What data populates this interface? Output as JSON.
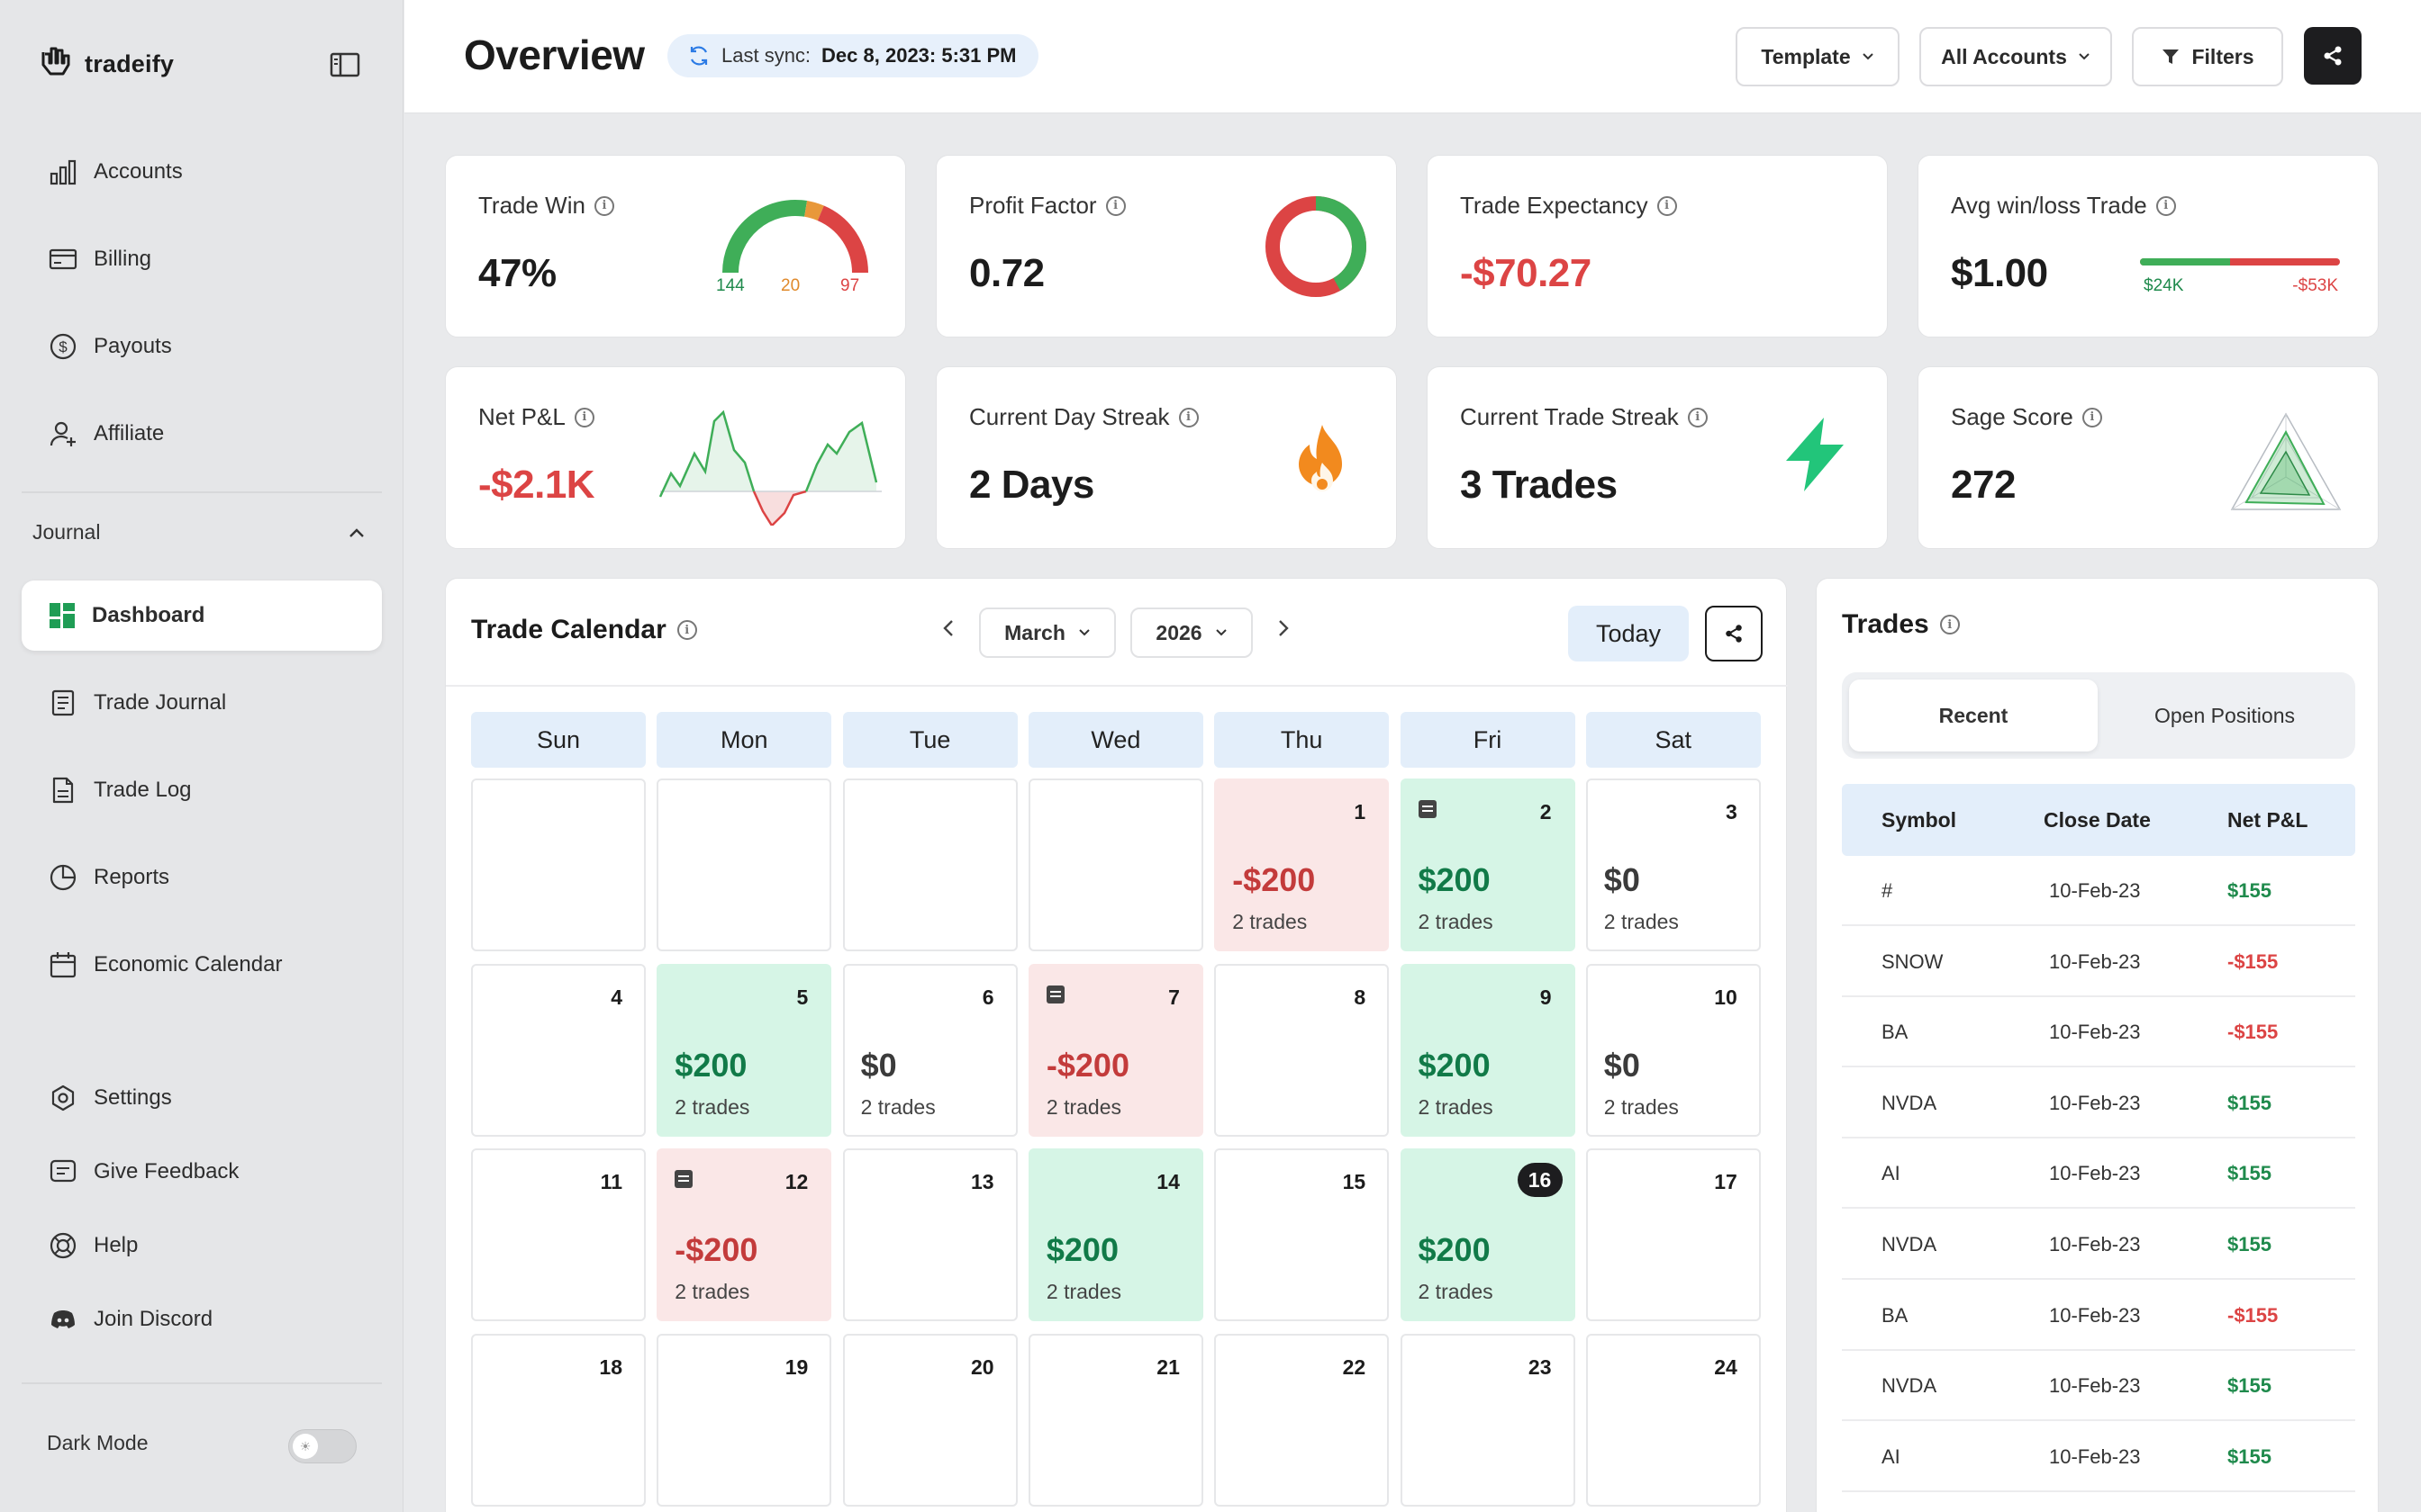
{
  "app": {
    "name": "tradeify"
  },
  "sidebar": {
    "items_top": [
      {
        "label": "Accounts",
        "icon": "bar-chart-icon"
      },
      {
        "label": "Billing",
        "icon": "credit-card-icon"
      },
      {
        "label": "Payouts",
        "icon": "dollar-circle-icon"
      },
      {
        "label": "Affiliate",
        "icon": "user-add-icon"
      }
    ],
    "section_label": "Journal",
    "journal_items": [
      {
        "label": "Dashboard",
        "icon": "dashboard-grid-icon",
        "active": true
      },
      {
        "label": "Trade Journal",
        "icon": "journal-icon"
      },
      {
        "label": "Trade Log",
        "icon": "document-icon"
      },
      {
        "label": "Reports",
        "icon": "pie-chart-icon"
      },
      {
        "label": "Economic Calendar",
        "icon": "calendar-icon"
      }
    ],
    "items_bottom": [
      {
        "label": "Settings",
        "icon": "settings-hex-icon"
      },
      {
        "label": "Give Feedback",
        "icon": "feedback-icon"
      },
      {
        "label": "Help",
        "icon": "lifebuoy-icon"
      },
      {
        "label": "Join Discord",
        "icon": "discord-icon"
      }
    ],
    "dark_mode_label": "Dark Mode",
    "dark_mode_on": false
  },
  "header": {
    "title": "Overview",
    "sync_label": "Last sync:",
    "sync_value": "Dec 8, 2023: 5:31 PM",
    "template_label": "Template",
    "accounts_label": "All Accounts",
    "filters_label": "Filters"
  },
  "kpis": {
    "trade_win": {
      "label": "Trade Win",
      "value": "47%",
      "wins": "144",
      "breakeven": "20",
      "losses": "97"
    },
    "profit_factor": {
      "label": "Profit Factor",
      "value": "0.72",
      "ratio": 0.72
    },
    "trade_expectancy": {
      "label": "Trade Expectancy",
      "value": "-$70.27"
    },
    "avg_win_loss": {
      "label": "Avg win/loss Trade",
      "value": "$1.00",
      "avg_win": "$24K",
      "avg_loss": "-$53K"
    },
    "net_pnl": {
      "label": "Net P&L",
      "value": "-$2.1K"
    },
    "day_streak": {
      "label": "Current Day Streak",
      "value": "2 Days"
    },
    "trade_streak": {
      "label": "Current Trade Streak",
      "value": "3 Trades"
    },
    "sage_score": {
      "label": "Sage Score",
      "value": "272"
    }
  },
  "calendar": {
    "title": "Trade Calendar",
    "month": "March",
    "year": "2026",
    "today_label": "Today",
    "weekdays": [
      "Sun",
      "Mon",
      "Tue",
      "Wed",
      "Thu",
      "Fri",
      "Sat"
    ],
    "weeks": [
      [
        null,
        null,
        null,
        null,
        {
          "day": "1",
          "amount": "-$200",
          "trades": "2 trades",
          "tone": "neg"
        },
        {
          "day": "2",
          "amount": "$200",
          "trades": "2 trades",
          "tone": "pos",
          "note": true
        },
        {
          "day": "3",
          "amount": "$0",
          "trades": "2 trades",
          "tone": "zero"
        }
      ],
      [
        {
          "day": "4"
        },
        {
          "day": "5",
          "amount": "$200",
          "trades": "2 trades",
          "tone": "pos"
        },
        {
          "day": "6",
          "amount": "$0",
          "trades": "2 trades",
          "tone": "zero"
        },
        {
          "day": "7",
          "amount": "-$200",
          "trades": "2 trades",
          "tone": "neg",
          "note": true
        },
        {
          "day": "8"
        },
        {
          "day": "9",
          "amount": "$200",
          "trades": "2 trades",
          "tone": "pos"
        },
        {
          "day": "10",
          "amount": "$0",
          "trades": "2 trades",
          "tone": "zero"
        }
      ],
      [
        {
          "day": "11"
        },
        {
          "day": "12",
          "amount": "-$200",
          "trades": "2 trades",
          "tone": "neg",
          "note": true
        },
        {
          "day": "13"
        },
        {
          "day": "14",
          "amount": "$200",
          "trades": "2 trades",
          "tone": "pos"
        },
        {
          "day": "15"
        },
        {
          "day": "16",
          "amount": "$200",
          "trades": "2 trades",
          "tone": "pos",
          "today": true
        },
        {
          "day": "17"
        }
      ],
      [
        {
          "day": "18"
        },
        {
          "day": "19"
        },
        {
          "day": "20"
        },
        {
          "day": "21"
        },
        {
          "day": "22"
        },
        {
          "day": "23"
        },
        {
          "day": "24"
        }
      ]
    ]
  },
  "trades": {
    "title": "Trades",
    "tabs": [
      {
        "label": "Recent",
        "active": true
      },
      {
        "label": "Open Positions",
        "active": false
      }
    ],
    "columns": [
      "Symbol",
      "Close Date",
      "Net P&L"
    ],
    "rows": [
      {
        "symbol": "#",
        "date": "10-Feb-23",
        "pnl": "$155",
        "tone": "pos"
      },
      {
        "symbol": "SNOW",
        "date": "10-Feb-23",
        "pnl": "-$155",
        "tone": "neg"
      },
      {
        "symbol": "BA",
        "date": "10-Feb-23",
        "pnl": "-$155",
        "tone": "neg"
      },
      {
        "symbol": "NVDA",
        "date": "10-Feb-23",
        "pnl": "$155",
        "tone": "pos"
      },
      {
        "symbol": "AI",
        "date": "10-Feb-23",
        "pnl": "$155",
        "tone": "pos"
      },
      {
        "symbol": "NVDA",
        "date": "10-Feb-23",
        "pnl": "$155",
        "tone": "pos"
      },
      {
        "symbol": "BA",
        "date": "10-Feb-23",
        "pnl": "-$155",
        "tone": "neg"
      },
      {
        "symbol": "NVDA",
        "date": "10-Feb-23",
        "pnl": "$155",
        "tone": "pos"
      },
      {
        "symbol": "AI",
        "date": "10-Feb-23",
        "pnl": "$155",
        "tone": "pos"
      }
    ]
  },
  "colors": {
    "positive": "#1f8a4c",
    "negative": "#dc4444",
    "neutral_amber": "#e8983a",
    "accent_blue": "#e3eefa"
  }
}
